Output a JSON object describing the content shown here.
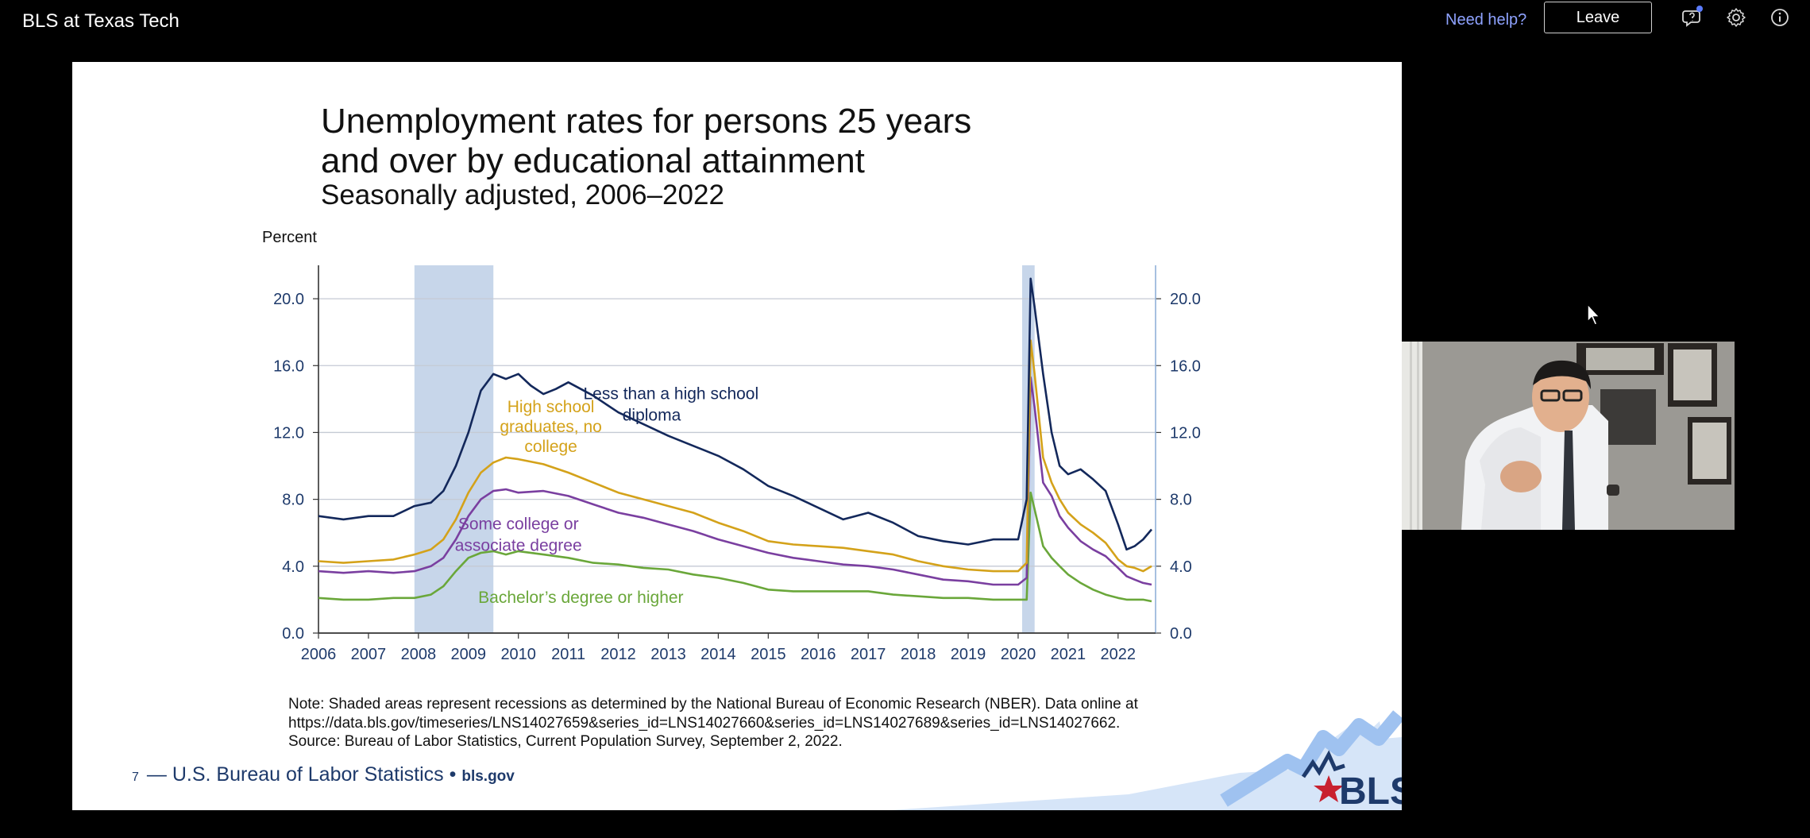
{
  "app": {
    "title": "BLS at Texas Tech",
    "help_link": "Need help?",
    "leave_label": "Leave"
  },
  "icons": [
    "chat-bubble-icon",
    "gear-icon",
    "info-icon"
  ],
  "colors": {
    "help_link": "#8ea2ff",
    "less_than_hs": "#13285b",
    "hs_grad": "#d4a21a",
    "some_college": "#7a3fa0",
    "bachelors": "#6aa73a",
    "recession_shade": "#c7d6ea"
  },
  "slide": {
    "title": "Unemployment rates for persons 25 years and over by educational attainment",
    "subtitle": "Seasonally adjusted, 2006–2022",
    "note_lines": [
      "Note: Shaded areas represent recessions as determined by the National Bureau of Economic Research (NBER). Data online at",
      "https://data.bls.gov/timeseries/LNS14027659&series_id=LNS14027660&series_id=LNS14027689&series_id=LNS14027662.",
      "Source: Bureau of Labor Statistics, Current Population Survey, September 2, 2022."
    ],
    "footer": {
      "page_number": "7",
      "org": "— U.S. Bureau of Labor Statistics •",
      "site": "bls.gov"
    },
    "logo_text": "BLS"
  },
  "chart_data": {
    "type": "line",
    "title": "Unemployment rates for persons 25 years and over by educational attainment",
    "subtitle": "Seasonally adjusted, 2006–2022",
    "ylabel": "Percent",
    "ylim": [
      0,
      22
    ],
    "yticks": [
      "0.0",
      "4.0",
      "8.0",
      "12.0",
      "16.0",
      "20.0"
    ],
    "xticks": [
      "2006",
      "2007",
      "2008",
      "2009",
      "2010",
      "2011",
      "2012",
      "2013",
      "2014",
      "2015",
      "2016",
      "2017",
      "2018",
      "2019",
      "2020",
      "2021",
      "2022"
    ],
    "xlim": [
      2006.0,
      2022.67
    ],
    "recessions": [
      [
        2007.92,
        2009.5
      ],
      [
        2020.08,
        2020.33
      ]
    ],
    "grid": true,
    "series": [
      {
        "name": "Less than a high school diploma",
        "label_lines": [
          "Less than a high school",
          "diploma"
        ],
        "x": [
          2006.0,
          2006.5,
          2007.0,
          2007.5,
          2007.92,
          2008.25,
          2008.5,
          2008.75,
          2009.0,
          2009.25,
          2009.5,
          2009.75,
          2010.0,
          2010.25,
          2010.5,
          2010.75,
          2011.0,
          2011.5,
          2012.0,
          2012.5,
          2013.0,
          2013.5,
          2014.0,
          2014.5,
          2015.0,
          2015.5,
          2016.0,
          2016.5,
          2016.75,
          2017.0,
          2017.5,
          2018.0,
          2018.5,
          2019.0,
          2019.5,
          2020.0,
          2020.17,
          2020.25,
          2020.33,
          2020.5,
          2020.67,
          2020.83,
          2021.0,
          2021.25,
          2021.5,
          2021.75,
          2022.0,
          2022.17,
          2022.33,
          2022.5,
          2022.67
        ],
        "y": [
          7.0,
          6.8,
          7.0,
          7.0,
          7.6,
          7.8,
          8.5,
          10.0,
          12.0,
          14.5,
          15.5,
          15.2,
          15.5,
          14.8,
          14.3,
          14.6,
          15.0,
          14.2,
          13.2,
          12.5,
          11.8,
          11.2,
          10.6,
          9.8,
          8.8,
          8.2,
          7.5,
          6.8,
          7.0,
          7.2,
          6.6,
          5.8,
          5.5,
          5.3,
          5.6,
          5.6,
          8.0,
          21.2,
          19.5,
          15.5,
          12.0,
          10.0,
          9.5,
          9.8,
          9.2,
          8.5,
          6.5,
          5.0,
          5.2,
          5.6,
          6.2
        ]
      },
      {
        "name": "High school graduates, no college",
        "label_lines": [
          "High school",
          "graduates, no",
          "college"
        ],
        "x": [
          2006.0,
          2006.5,
          2007.0,
          2007.5,
          2007.92,
          2008.25,
          2008.5,
          2008.75,
          2009.0,
          2009.25,
          2009.5,
          2009.75,
          2010.0,
          2010.5,
          2011.0,
          2011.5,
          2012.0,
          2012.5,
          2013.0,
          2013.5,
          2014.0,
          2014.5,
          2015.0,
          2015.5,
          2016.0,
          2016.5,
          2017.0,
          2017.5,
          2018.0,
          2018.5,
          2019.0,
          2019.5,
          2020.0,
          2020.17,
          2020.25,
          2020.33,
          2020.5,
          2020.67,
          2020.83,
          2021.0,
          2021.25,
          2021.5,
          2021.75,
          2022.0,
          2022.17,
          2022.33,
          2022.5,
          2022.67
        ],
        "y": [
          4.3,
          4.2,
          4.3,
          4.4,
          4.7,
          5.0,
          5.6,
          6.8,
          8.4,
          9.6,
          10.2,
          10.5,
          10.4,
          10.1,
          9.6,
          9.0,
          8.4,
          8.0,
          7.6,
          7.2,
          6.6,
          6.1,
          5.5,
          5.3,
          5.2,
          5.1,
          4.9,
          4.7,
          4.3,
          4.0,
          3.8,
          3.7,
          3.7,
          4.2,
          17.5,
          15.5,
          10.5,
          9.0,
          8.0,
          7.2,
          6.5,
          6.0,
          5.4,
          4.4,
          4.0,
          3.9,
          3.7,
          4.0
        ]
      },
      {
        "name": "Some college or associate degree",
        "label_lines": [
          "Some college or",
          "associate degree"
        ],
        "x": [
          2006.0,
          2006.5,
          2007.0,
          2007.5,
          2007.92,
          2008.25,
          2008.5,
          2008.75,
          2009.0,
          2009.25,
          2009.5,
          2009.75,
          2010.0,
          2010.5,
          2011.0,
          2011.5,
          2012.0,
          2012.5,
          2013.0,
          2013.5,
          2014.0,
          2014.5,
          2015.0,
          2015.5,
          2016.0,
          2016.5,
          2017.0,
          2017.5,
          2018.0,
          2018.5,
          2019.0,
          2019.5,
          2020.0,
          2020.17,
          2020.25,
          2020.33,
          2020.5,
          2020.67,
          2020.83,
          2021.0,
          2021.25,
          2021.5,
          2021.75,
          2022.0,
          2022.17,
          2022.33,
          2022.5,
          2022.67
        ],
        "y": [
          3.7,
          3.6,
          3.7,
          3.6,
          3.7,
          4.0,
          4.5,
          5.6,
          7.0,
          8.0,
          8.5,
          8.6,
          8.4,
          8.5,
          8.2,
          7.7,
          7.2,
          6.9,
          6.5,
          6.1,
          5.6,
          5.2,
          4.8,
          4.5,
          4.3,
          4.1,
          4.0,
          3.8,
          3.5,
          3.2,
          3.1,
          2.9,
          2.9,
          3.3,
          15.3,
          13.5,
          9.0,
          8.2,
          7.0,
          6.3,
          5.5,
          5.0,
          4.6,
          3.9,
          3.4,
          3.2,
          3.0,
          2.9
        ]
      },
      {
        "name": "Bachelor’s degree or higher",
        "label_lines": [
          "Bachelor’s degree or higher"
        ],
        "x": [
          2006.0,
          2006.5,
          2007.0,
          2007.5,
          2007.92,
          2008.25,
          2008.5,
          2008.75,
          2009.0,
          2009.25,
          2009.5,
          2009.75,
          2010.0,
          2010.5,
          2011.0,
          2011.5,
          2012.0,
          2012.5,
          2013.0,
          2013.5,
          2014.0,
          2014.5,
          2015.0,
          2015.5,
          2016.0,
          2016.5,
          2017.0,
          2017.5,
          2018.0,
          2018.5,
          2019.0,
          2019.5,
          2020.0,
          2020.17,
          2020.25,
          2020.33,
          2020.5,
          2020.67,
          2020.83,
          2021.0,
          2021.25,
          2021.5,
          2021.75,
          2022.0,
          2022.17,
          2022.33,
          2022.5,
          2022.67
        ],
        "y": [
          2.1,
          2.0,
          2.0,
          2.1,
          2.1,
          2.3,
          2.8,
          3.7,
          4.5,
          4.8,
          4.9,
          4.7,
          4.9,
          4.7,
          4.5,
          4.2,
          4.1,
          3.9,
          3.8,
          3.5,
          3.3,
          3.0,
          2.6,
          2.5,
          2.5,
          2.5,
          2.5,
          2.3,
          2.2,
          2.1,
          2.1,
          2.0,
          2.0,
          2.0,
          8.4,
          7.4,
          5.2,
          4.5,
          4.0,
          3.5,
          3.0,
          2.6,
          2.3,
          2.1,
          2.0,
          2.0,
          2.0,
          1.9
        ]
      }
    ]
  }
}
